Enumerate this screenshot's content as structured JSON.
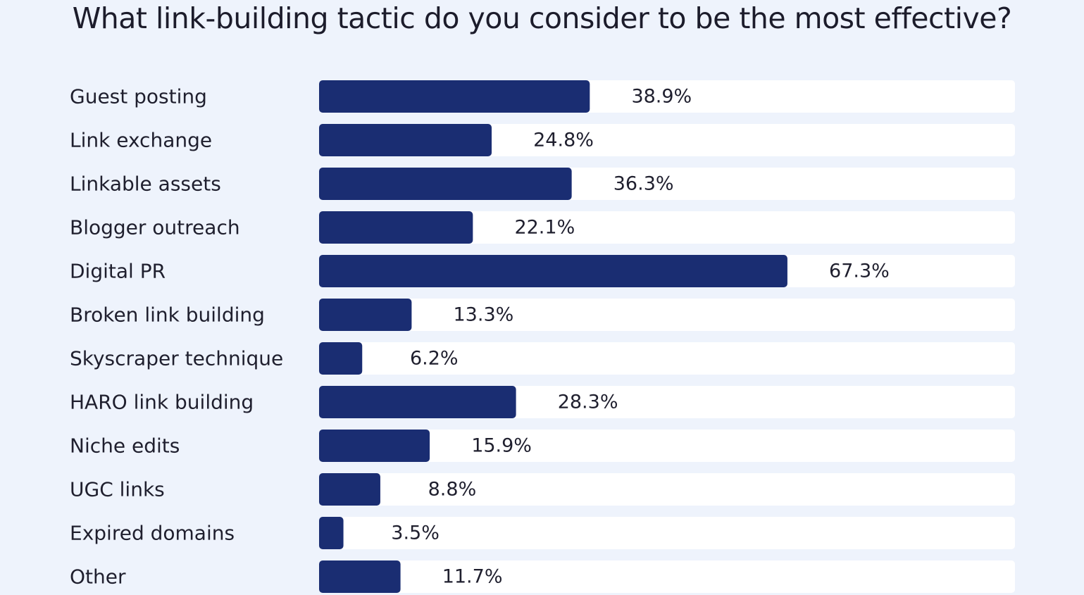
{
  "chart_data": {
    "type": "bar",
    "orientation": "horizontal",
    "title": "What link-building tactic do you consider to be the most effective?",
    "categories": [
      "Guest posting",
      "Link exchange",
      "Linkable assets",
      "Blogger outreach",
      "Digital PR",
      "Broken link building",
      "Skyscraper technique",
      "HARO link building",
      "Niche edits",
      "UGC links",
      "Expired domains",
      "Other"
    ],
    "values": [
      38.9,
      24.8,
      36.3,
      22.1,
      67.3,
      13.3,
      6.2,
      28.3,
      15.9,
      8.8,
      3.5,
      11.7
    ],
    "value_labels": [
      "38.9%",
      "24.8%",
      "36.3%",
      "22.1%",
      "67.3%",
      "13.3%",
      "6.2%",
      "28.3%",
      "15.9%",
      "8.8%",
      "3.5%",
      "11.7%"
    ],
    "xlim": [
      0,
      100
    ],
    "unit": "%",
    "grid": false,
    "legend": "none",
    "colors": {
      "bar": "#1a2d72",
      "track": "#ffffff",
      "background": "#eef3fc",
      "text": "#1f1f2e"
    }
  }
}
